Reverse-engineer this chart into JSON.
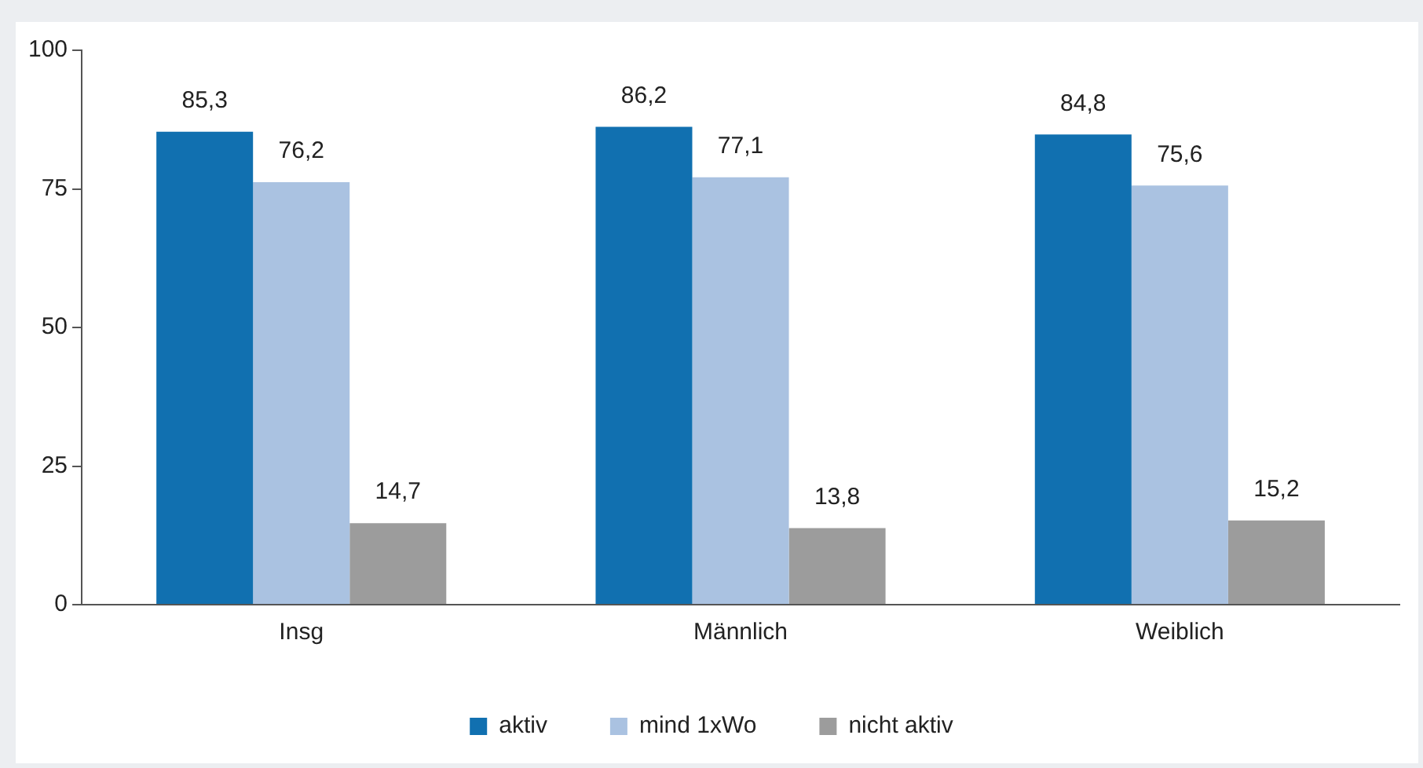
{
  "chart_data": {
    "type": "bar",
    "categories": [
      "Insg",
      "Männlich",
      "Weiblich"
    ],
    "series": [
      {
        "name": "aktiv",
        "color": "#1170b0",
        "values": [
          85.3,
          86.2,
          84.8
        ],
        "value_labels": [
          "85,3",
          "86,2",
          "84,8"
        ]
      },
      {
        "name": "mind 1xWo",
        "color": "#aac2e1",
        "values": [
          76.2,
          77.1,
          75.6
        ],
        "value_labels": [
          "76,2",
          "77,1",
          "75,6"
        ]
      },
      {
        "name": "nicht aktiv",
        "color": "#9c9c9c",
        "values": [
          14.7,
          13.8,
          15.2
        ],
        "value_labels": [
          "14,7",
          "13,8",
          "15,2"
        ]
      }
    ],
    "ylim": [
      0,
      100
    ],
    "yticks": [
      0,
      25,
      50,
      75,
      100
    ],
    "grid": false,
    "legend": "bottom"
  }
}
